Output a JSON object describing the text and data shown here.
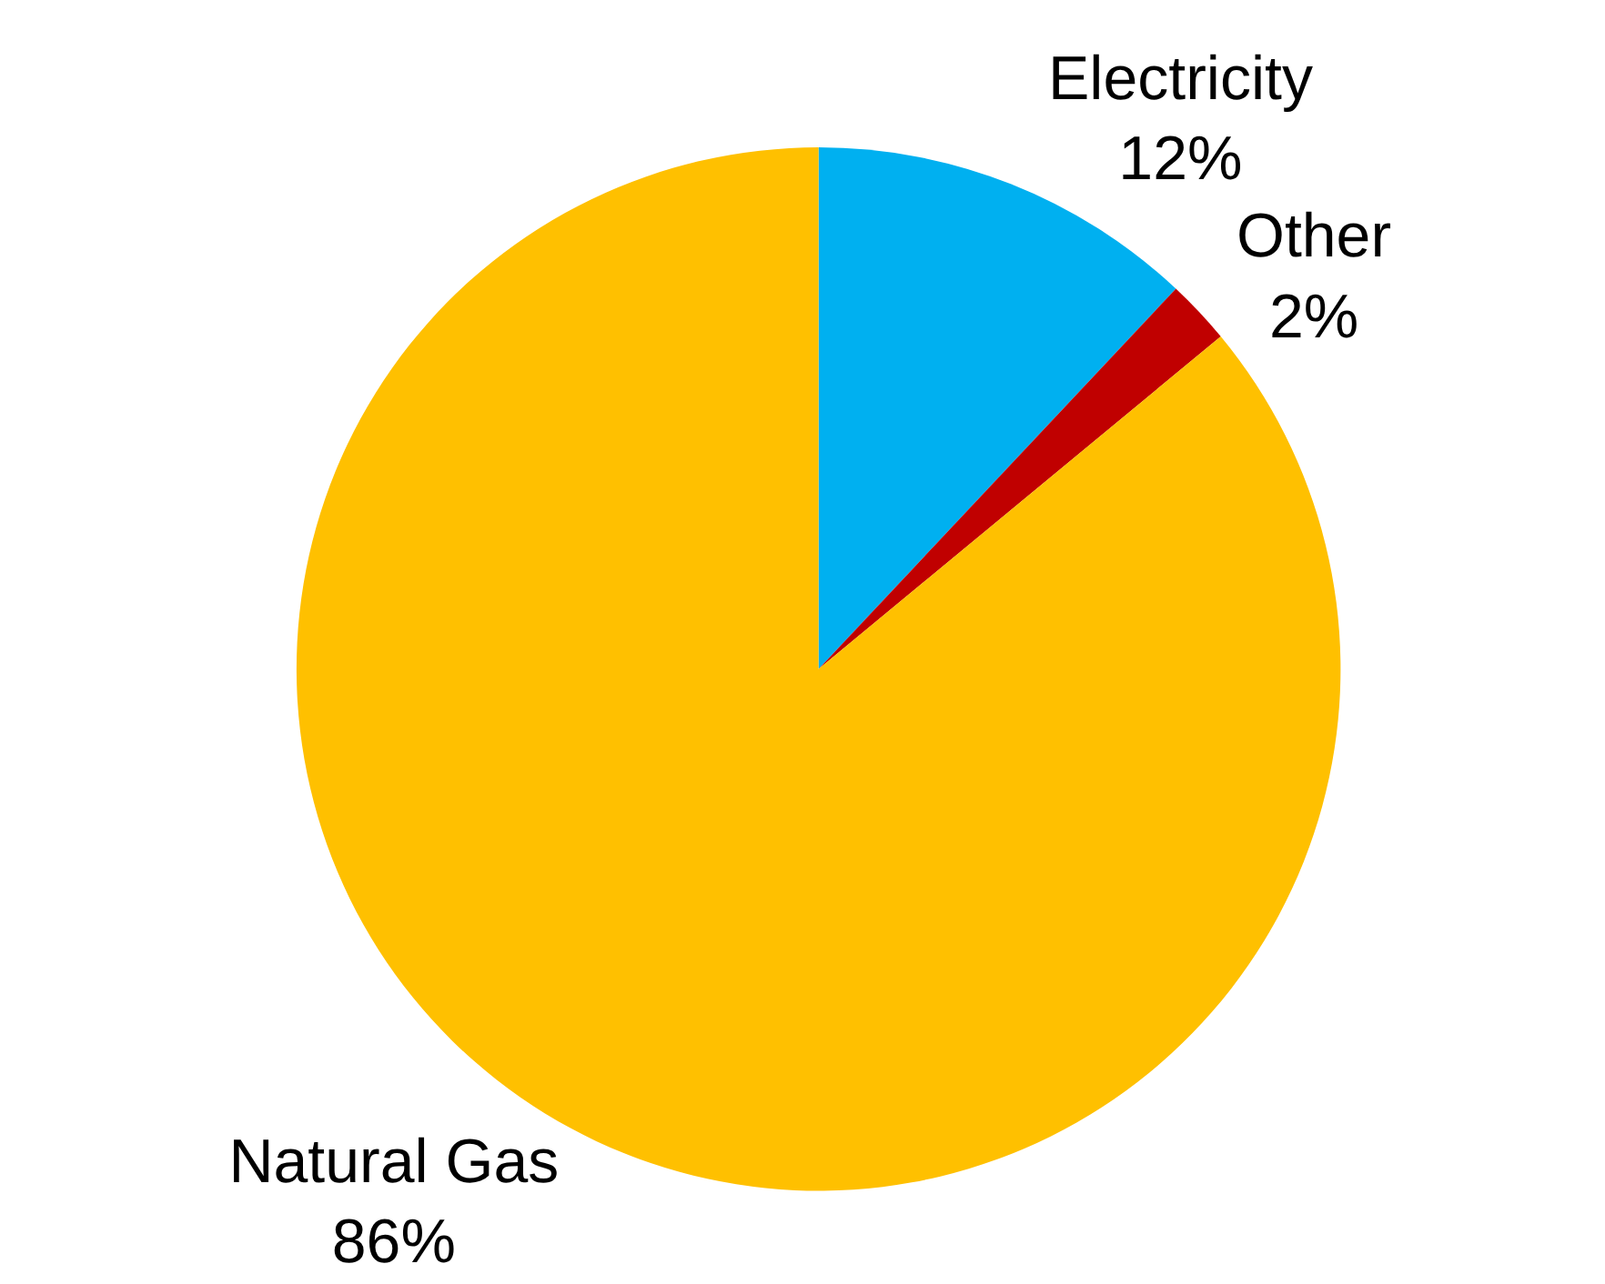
{
  "chart_data": {
    "type": "pie",
    "categories": [
      "Electricity",
      "Other",
      "Natural Gas"
    ],
    "values": [
      12,
      2,
      86
    ],
    "value_labels": [
      "12%",
      "2%",
      "86%"
    ],
    "colors": [
      "#00b0f0",
      "#c00000",
      "#ffc000"
    ],
    "legend": false
  }
}
